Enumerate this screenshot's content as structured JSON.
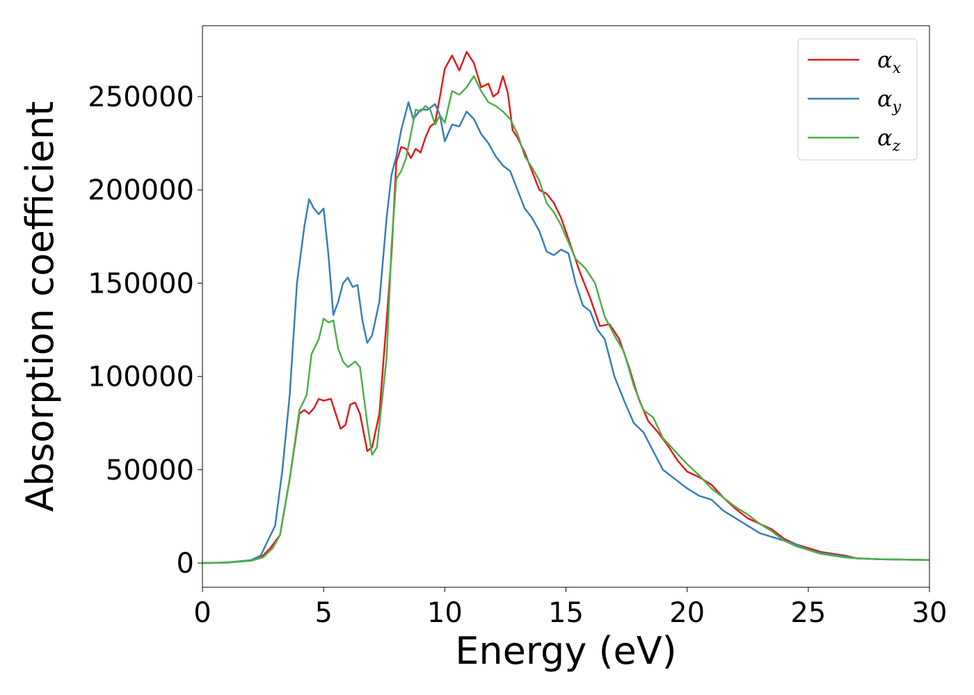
{
  "chart_data": {
    "type": "line",
    "title": "",
    "xlabel": "Energy (eV)",
    "ylabel": "Absorption coefficient",
    "xlim": [
      0,
      30
    ],
    "ylim": [
      -13000,
      288000
    ],
    "xticks": [
      0,
      5,
      10,
      15,
      20,
      25,
      30
    ],
    "yticks": [
      0,
      50000,
      100000,
      150000,
      200000,
      250000
    ],
    "grid": false,
    "legend_position": "top-right",
    "series": [
      {
        "name": "α_x",
        "legend_base": "α",
        "legend_sub": "x",
        "color": "#e41a1c",
        "points": [
          [
            0,
            0
          ],
          [
            1,
            200
          ],
          [
            2,
            1500
          ],
          [
            2.5,
            4000
          ],
          [
            2.8,
            8000
          ],
          [
            3.2,
            15000
          ],
          [
            3.6,
            45000
          ],
          [
            4.0,
            80000
          ],
          [
            4.2,
            82000
          ],
          [
            4.4,
            80000
          ],
          [
            4.6,
            83000
          ],
          [
            4.8,
            88000
          ],
          [
            5.0,
            87000
          ],
          [
            5.3,
            88000
          ],
          [
            5.5,
            80000
          ],
          [
            5.7,
            72000
          ],
          [
            5.9,
            74000
          ],
          [
            6.1,
            85000
          ],
          [
            6.3,
            86000
          ],
          [
            6.5,
            80000
          ],
          [
            6.8,
            60000
          ],
          [
            7.0,
            62000
          ],
          [
            7.3,
            80000
          ],
          [
            7.6,
            130000
          ],
          [
            7.8,
            165000
          ],
          [
            8.0,
            215000
          ],
          [
            8.2,
            223000
          ],
          [
            8.4,
            222000
          ],
          [
            8.6,
            217000
          ],
          [
            8.8,
            222000
          ],
          [
            9.0,
            220000
          ],
          [
            9.2,
            228000
          ],
          [
            9.4,
            234000
          ],
          [
            9.6,
            236000
          ],
          [
            9.8,
            250000
          ],
          [
            10.0,
            265000
          ],
          [
            10.3,
            272000
          ],
          [
            10.6,
            264000
          ],
          [
            10.9,
            274000
          ],
          [
            11.2,
            268000
          ],
          [
            11.5,
            255000
          ],
          [
            11.8,
            257000
          ],
          [
            12.0,
            250000
          ],
          [
            12.2,
            252000
          ],
          [
            12.4,
            261000
          ],
          [
            12.6,
            252000
          ],
          [
            12.8,
            232000
          ],
          [
            13.0,
            228000
          ],
          [
            13.3,
            220000
          ],
          [
            13.6,
            210000
          ],
          [
            13.9,
            200000
          ],
          [
            14.2,
            198000
          ],
          [
            14.5,
            193000
          ],
          [
            14.8,
            185000
          ],
          [
            15.2,
            170000
          ],
          [
            15.6,
            155000
          ],
          [
            16.0,
            142000
          ],
          [
            16.4,
            127000
          ],
          [
            16.8,
            128000
          ],
          [
            17.2,
            120000
          ],
          [
            17.6,
            105000
          ],
          [
            18.0,
            88000
          ],
          [
            18.4,
            76000
          ],
          [
            18.8,
            70000
          ],
          [
            19.2,
            63000
          ],
          [
            19.6,
            55000
          ],
          [
            20.0,
            49000
          ],
          [
            20.5,
            46000
          ],
          [
            21.0,
            42000
          ],
          [
            21.5,
            35000
          ],
          [
            22.0,
            29000
          ],
          [
            22.5,
            24000
          ],
          [
            23.0,
            21000
          ],
          [
            23.5,
            18000
          ],
          [
            24.0,
            13000
          ],
          [
            24.5,
            10000
          ],
          [
            25.0,
            8000
          ],
          [
            25.5,
            6000
          ],
          [
            26.0,
            5000
          ],
          [
            26.5,
            4000
          ],
          [
            27.0,
            2500
          ],
          [
            28.0,
            2000
          ],
          [
            29.0,
            1800
          ],
          [
            30.0,
            1600
          ]
        ]
      },
      {
        "name": "α_y",
        "legend_base": "α",
        "legend_sub": "y",
        "color": "#377eb8",
        "points": [
          [
            0,
            0
          ],
          [
            1,
            300
          ],
          [
            2,
            1500
          ],
          [
            2.4,
            4000
          ],
          [
            2.7,
            12000
          ],
          [
            3.0,
            20000
          ],
          [
            3.3,
            50000
          ],
          [
            3.6,
            90000
          ],
          [
            3.9,
            150000
          ],
          [
            4.2,
            180000
          ],
          [
            4.4,
            195000
          ],
          [
            4.6,
            190000
          ],
          [
            4.8,
            187000
          ],
          [
            5.0,
            190000
          ],
          [
            5.2,
            165000
          ],
          [
            5.4,
            133000
          ],
          [
            5.6,
            140000
          ],
          [
            5.8,
            150000
          ],
          [
            6.0,
            153000
          ],
          [
            6.2,
            148000
          ],
          [
            6.4,
            149000
          ],
          [
            6.6,
            130000
          ],
          [
            6.8,
            118000
          ],
          [
            7.0,
            122000
          ],
          [
            7.3,
            140000
          ],
          [
            7.6,
            185000
          ],
          [
            7.8,
            208000
          ],
          [
            8.0,
            218000
          ],
          [
            8.2,
            232000
          ],
          [
            8.5,
            247000
          ],
          [
            8.7,
            238000
          ],
          [
            9.0,
            243000
          ],
          [
            9.3,
            243000
          ],
          [
            9.6,
            246000
          ],
          [
            9.8,
            240000
          ],
          [
            10.0,
            226000
          ],
          [
            10.3,
            235000
          ],
          [
            10.6,
            234000
          ],
          [
            10.9,
            242000
          ],
          [
            11.2,
            238000
          ],
          [
            11.5,
            230000
          ],
          [
            11.8,
            225000
          ],
          [
            12.1,
            218000
          ],
          [
            12.4,
            213000
          ],
          [
            12.7,
            210000
          ],
          [
            13.0,
            200000
          ],
          [
            13.3,
            190000
          ],
          [
            13.6,
            185000
          ],
          [
            13.9,
            178000
          ],
          [
            14.2,
            167000
          ],
          [
            14.5,
            165000
          ],
          [
            14.8,
            168000
          ],
          [
            15.1,
            166000
          ],
          [
            15.4,
            150000
          ],
          [
            15.7,
            138000
          ],
          [
            16.0,
            135000
          ],
          [
            16.3,
            125000
          ],
          [
            16.6,
            120000
          ],
          [
            17.0,
            100000
          ],
          [
            17.4,
            87000
          ],
          [
            17.8,
            75000
          ],
          [
            18.2,
            70000
          ],
          [
            18.6,
            60000
          ],
          [
            19.0,
            50000
          ],
          [
            19.5,
            45000
          ],
          [
            20.0,
            40000
          ],
          [
            20.5,
            36000
          ],
          [
            21.0,
            34000
          ],
          [
            21.5,
            28000
          ],
          [
            22.0,
            24000
          ],
          [
            22.5,
            20000
          ],
          [
            23.0,
            16000
          ],
          [
            23.5,
            14000
          ],
          [
            24.0,
            12000
          ],
          [
            24.5,
            10000
          ],
          [
            25.0,
            7000
          ],
          [
            25.5,
            5500
          ],
          [
            26.0,
            4500
          ],
          [
            26.5,
            3500
          ],
          [
            27.0,
            2500
          ],
          [
            28.0,
            2000
          ],
          [
            29.0,
            1800
          ],
          [
            30.0,
            1600
          ]
        ]
      },
      {
        "name": "α_z",
        "legend_base": "α",
        "legend_sub": "z",
        "color": "#4daf4a",
        "points": [
          [
            0,
            0
          ],
          [
            1,
            200
          ],
          [
            2,
            1200
          ],
          [
            2.5,
            3000
          ],
          [
            2.9,
            8000
          ],
          [
            3.2,
            15000
          ],
          [
            3.6,
            45000
          ],
          [
            4.0,
            82000
          ],
          [
            4.3,
            90000
          ],
          [
            4.5,
            112000
          ],
          [
            4.8,
            120000
          ],
          [
            5.0,
            131000
          ],
          [
            5.2,
            129000
          ],
          [
            5.4,
            130000
          ],
          [
            5.6,
            115000
          ],
          [
            5.8,
            108000
          ],
          [
            6.0,
            105000
          ],
          [
            6.3,
            108000
          ],
          [
            6.5,
            105000
          ],
          [
            6.8,
            75000
          ],
          [
            7.0,
            58000
          ],
          [
            7.2,
            62000
          ],
          [
            7.6,
            110000
          ],
          [
            7.8,
            170000
          ],
          [
            8.0,
            206000
          ],
          [
            8.2,
            210000
          ],
          [
            8.4,
            217000
          ],
          [
            8.6,
            230000
          ],
          [
            8.8,
            243000
          ],
          [
            9.0,
            242000
          ],
          [
            9.2,
            245000
          ],
          [
            9.4,
            243000
          ],
          [
            9.6,
            235000
          ],
          [
            9.8,
            240000
          ],
          [
            10.0,
            236000
          ],
          [
            10.3,
            253000
          ],
          [
            10.6,
            251000
          ],
          [
            10.9,
            255000
          ],
          [
            11.2,
            261000
          ],
          [
            11.5,
            253000
          ],
          [
            11.8,
            247000
          ],
          [
            12.1,
            245000
          ],
          [
            12.4,
            242000
          ],
          [
            12.7,
            238000
          ],
          [
            13.0,
            230000
          ],
          [
            13.3,
            218000
          ],
          [
            13.6,
            212000
          ],
          [
            13.9,
            205000
          ],
          [
            14.2,
            193000
          ],
          [
            14.5,
            188000
          ],
          [
            14.8,
            181000
          ],
          [
            15.1,
            172000
          ],
          [
            15.4,
            163000
          ],
          [
            15.8,
            158000
          ],
          [
            16.2,
            150000
          ],
          [
            16.6,
            132000
          ],
          [
            17.0,
            122000
          ],
          [
            17.4,
            113000
          ],
          [
            17.8,
            95000
          ],
          [
            18.2,
            82000
          ],
          [
            18.6,
            78000
          ],
          [
            19.0,
            67000
          ],
          [
            19.5,
            60000
          ],
          [
            20.0,
            53000
          ],
          [
            20.5,
            47000
          ],
          [
            21.0,
            40000
          ],
          [
            21.5,
            35000
          ],
          [
            22.0,
            30000
          ],
          [
            22.5,
            26000
          ],
          [
            23.0,
            21000
          ],
          [
            23.5,
            17000
          ],
          [
            24.0,
            12000
          ],
          [
            24.5,
            9000
          ],
          [
            25.0,
            7000
          ],
          [
            25.5,
            5000
          ],
          [
            26.0,
            4000
          ],
          [
            26.5,
            3000
          ],
          [
            27.0,
            2500
          ],
          [
            28.0,
            2000
          ],
          [
            29.0,
            1800
          ],
          [
            30.0,
            1600
          ]
        ]
      }
    ]
  }
}
